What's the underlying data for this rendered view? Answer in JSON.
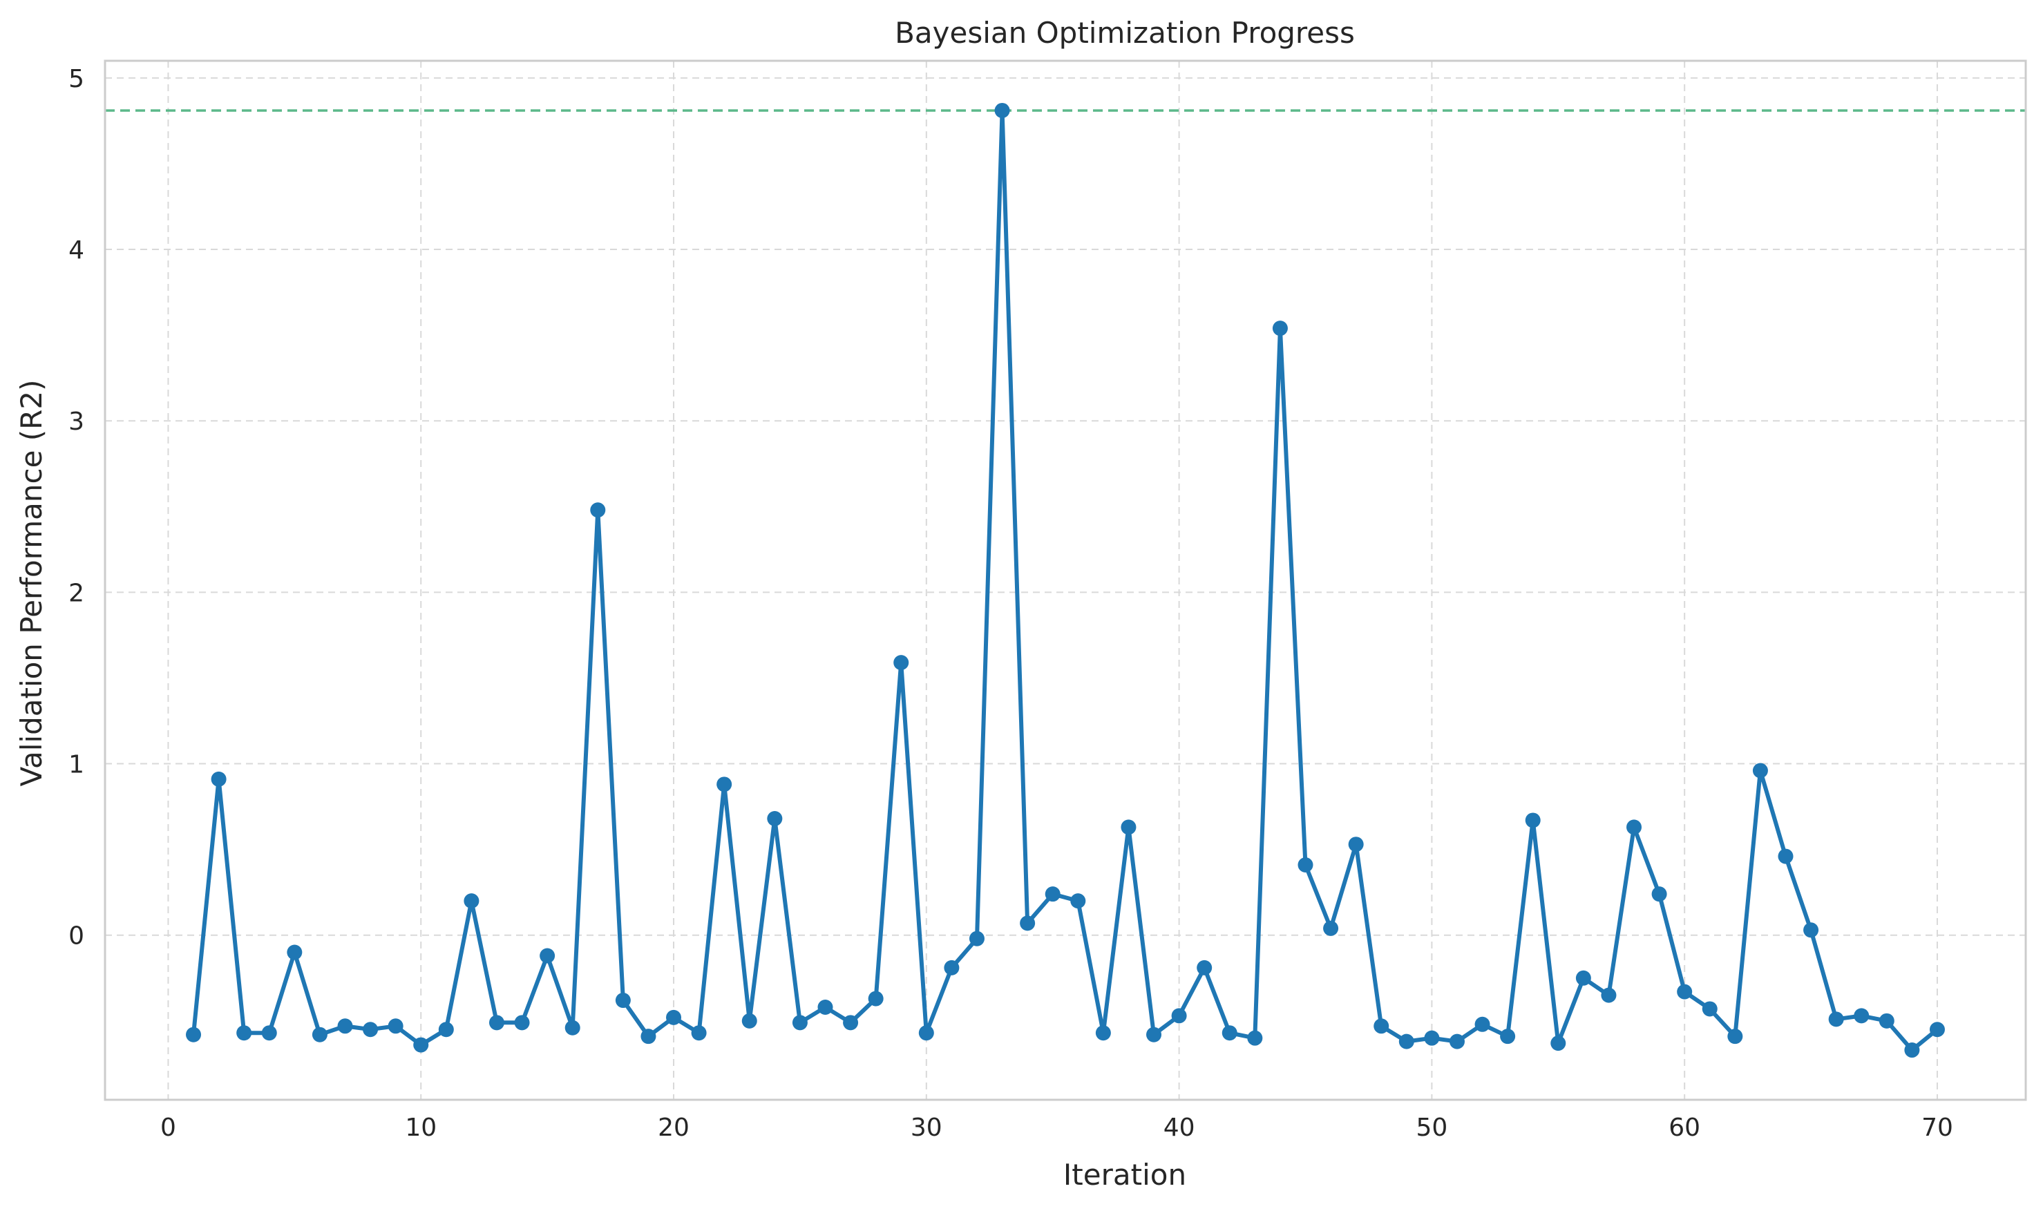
{
  "chart_data": {
    "type": "line",
    "title": "Bayesian Optimization Progress",
    "xlabel": "Iteration",
    "ylabel": "Validation Performance (R2)",
    "xlim": [
      -2.5,
      73.5
    ],
    "ylim": [
      -0.96,
      5.1
    ],
    "xticks": [
      0,
      10,
      20,
      30,
      40,
      50,
      60,
      70
    ],
    "yticks": [
      0,
      1,
      2,
      3,
      4,
      5
    ],
    "grid": true,
    "line_color": "#1f77b4",
    "best_line": {
      "y": 4.81,
      "color": "#5cb88a",
      "style": "dashed"
    },
    "series": [
      {
        "x": [
          1,
          2,
          3,
          4,
          5,
          6,
          7,
          8,
          9,
          10,
          11,
          12,
          13,
          14,
          15,
          16,
          17,
          18,
          19,
          20,
          21,
          22,
          23,
          24,
          25,
          26,
          27,
          28,
          29,
          30,
          31,
          32,
          33,
          34,
          35,
          36,
          37,
          38,
          39,
          40,
          41,
          42,
          43,
          44,
          45,
          46,
          47,
          48,
          49,
          50,
          51,
          52,
          53,
          54,
          55,
          56,
          57,
          58,
          59,
          60,
          61,
          62,
          63,
          64,
          65,
          66,
          67,
          68,
          69,
          70
        ],
        "values": [
          -0.58,
          0.91,
          -0.57,
          -0.57,
          -0.1,
          -0.58,
          -0.53,
          -0.55,
          -0.53,
          -0.64,
          -0.55,
          0.2,
          -0.51,
          -0.51,
          -0.12,
          -0.54,
          2.48,
          -0.38,
          -0.59,
          -0.48,
          -0.57,
          0.88,
          -0.5,
          0.68,
          -0.51,
          -0.42,
          -0.51,
          -0.37,
          1.59,
          -0.57,
          -0.19,
          -0.02,
          4.81,
          0.07,
          0.24,
          0.2,
          -0.57,
          0.63,
          -0.58,
          -0.47,
          -0.19,
          -0.57,
          -0.6,
          3.54,
          0.41,
          0.04,
          0.53,
          -0.53,
          -0.62,
          -0.6,
          -0.62,
          -0.52,
          -0.59,
          0.67,
          -0.63,
          -0.25,
          -0.35,
          0.63,
          0.24,
          -0.33,
          -0.43,
          -0.59,
          0.96,
          0.46,
          0.03,
          -0.49,
          -0.47,
          -0.5,
          -0.67,
          -0.55
        ]
      }
    ]
  }
}
